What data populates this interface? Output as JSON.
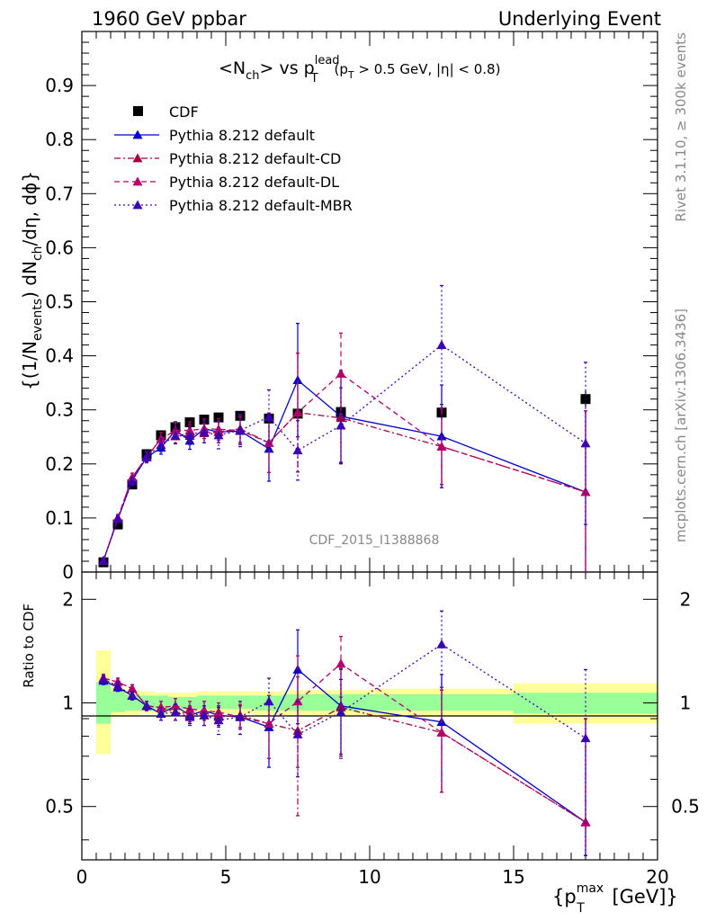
{
  "header": {
    "left": "1960 GeV ppbar",
    "right": "Underlying Event"
  },
  "side_text": {
    "rivet": "Rivet 3.1.10, ≥ 300k events",
    "mcplots": "mcplots.cern.ch [arXiv:1306.3436]"
  },
  "plot_title": {
    "main": "<N",
    "ch": "ch",
    "vs": "> vs p",
    "lead": "lead",
    "T": "T",
    "cuts_a": "(p",
    "cuts_T": "T",
    "cuts_b": " > 0.5 GeV, |η| < 0.8)"
  },
  "watermark": "CDF_2015_I1388868",
  "y_label_main": {
    "a": "{(1/N",
    "events": "events",
    "b": ") dN",
    "ch": "ch",
    "c": "/dη, dϕ}"
  },
  "y_label_ratio": "Ratio to CDF",
  "x_label": {
    "a": "{p",
    "max": "max",
    "T": "T",
    "b": " [GeV]}"
  },
  "legend": [
    {
      "label": "CDF",
      "style": "data"
    },
    {
      "label": "Pythia 8.212 default",
      "style": "solid"
    },
    {
      "label": "Pythia 8.212 default-CD",
      "style": "dashdot"
    },
    {
      "label": "Pythia 8.212 default-DL",
      "style": "dashed"
    },
    {
      "label": "Pythia 8.212 default-MBR",
      "style": "dotted"
    }
  ],
  "colors": {
    "data": "#000000",
    "default": "#0000cc",
    "default_cd": "#a4003f",
    "default_dl": "#b3006b",
    "default_mbr": "#3b00b3",
    "band_inner": "#99ff99",
    "band_outer": "#ffff99"
  },
  "chart_data": [
    {
      "type": "scatter",
      "panel": "main",
      "xlim": [
        0,
        20
      ],
      "ylim": [
        0,
        1.0
      ],
      "x_ticks": [
        "0",
        "5",
        "10",
        "15",
        "20"
      ],
      "y_ticks": [
        "0",
        "0.1",
        "0.2",
        "0.3",
        "0.4",
        "0.5",
        "0.6",
        "0.7",
        "0.8",
        "0.9"
      ],
      "grid": false,
      "legend_position": "top-left",
      "x": [
        0.75,
        1.25,
        1.75,
        2.25,
        2.75,
        3.25,
        3.75,
        4.25,
        4.75,
        5.5,
        6.5,
        7.5,
        9.0,
        12.5,
        17.5
      ],
      "series": [
        {
          "name": "CDF",
          "key": "data",
          "values": [
            0.018,
            0.088,
            0.162,
            0.218,
            0.253,
            0.268,
            0.277,
            0.282,
            0.286,
            0.289,
            0.284,
            0.293,
            0.296,
            0.295,
            0.32
          ],
          "errors": [
            0.002,
            0.004,
            0.005,
            0.006,
            0.006,
            0.006,
            0.006,
            0.006,
            0.006,
            0.007,
            0.008,
            0.009,
            0.01,
            0.012,
            0.015
          ]
        },
        {
          "name": "Pythia 8.212 default",
          "key": "default",
          "values": [
            0.021,
            0.098,
            0.17,
            0.212,
            0.23,
            0.262,
            0.243,
            0.265,
            0.259,
            0.261,
            0.228,
            0.355,
            0.288,
            0.251,
            0.148
          ],
          "errors": [
            0.002,
            0.006,
            0.008,
            0.01,
            0.012,
            0.016,
            0.016,
            0.018,
            0.02,
            0.025,
            0.06,
            0.105,
            0.085,
            0.095,
            0.15
          ]
        },
        {
          "name": "Pythia 8.212 default-CD",
          "key": "default_cd",
          "values": [
            0.021,
            0.1,
            0.175,
            0.213,
            0.246,
            0.251,
            0.257,
            0.257,
            0.259,
            0.265,
            0.239,
            0.295,
            0.285,
            0.232,
            0.148
          ],
          "errors": [
            0.002,
            0.006,
            0.008,
            0.01,
            0.012,
            0.014,
            0.016,
            0.018,
            0.02,
            0.025,
            0.055,
            0.11,
            0.085,
            0.07,
            0.15
          ]
        },
        {
          "name": "Pythia 8.212 default-DL",
          "key": "default_dl",
          "values": [
            0.021,
            0.1,
            0.175,
            0.213,
            0.246,
            0.262,
            0.262,
            0.265,
            0.264,
            0.262,
            0.239,
            0.295,
            0.367,
            0.232,
            0.148
          ],
          "errors": [
            0.002,
            0.006,
            0.008,
            0.01,
            0.012,
            0.014,
            0.016,
            0.018,
            0.02,
            0.025,
            0.055,
            0.11,
            0.075,
            0.07,
            0.15
          ]
        },
        {
          "name": "Pythia 8.212 default-MBR",
          "key": "default_mbr",
          "values": [
            0.021,
            0.098,
            0.168,
            0.214,
            0.235,
            0.252,
            0.252,
            0.259,
            0.253,
            0.262,
            0.287,
            0.225,
            0.271,
            0.42,
            0.238
          ],
          "errors": [
            0.002,
            0.006,
            0.008,
            0.01,
            0.012,
            0.014,
            0.016,
            0.02,
            0.025,
            0.03,
            0.05,
            0.055,
            0.07,
            0.11,
            0.15
          ]
        }
      ]
    },
    {
      "type": "scatter",
      "panel": "ratio",
      "xlim": [
        0,
        20
      ],
      "ylim": [
        0.35,
        2.4
      ],
      "y_scale": "log",
      "x_ticks": [
        "0",
        "5",
        "10",
        "15",
        "20"
      ],
      "y_ticks": [
        "0.5",
        "1",
        "2"
      ],
      "xlabel": "{p_T^max [GeV]}",
      "ylabel": "Ratio to CDF",
      "reference_line": 1,
      "bands": [
        {
          "x0": 0.5,
          "x1": 1.0,
          "inner": [
            0.87,
            1.15
          ],
          "outer": [
            0.71,
            1.42
          ]
        },
        {
          "x0": 1.0,
          "x1": 1.5,
          "inner": [
            0.94,
            1.08
          ],
          "outer": [
            0.91,
            1.11
          ]
        },
        {
          "x0": 1.5,
          "x1": 2.0,
          "inner": [
            0.95,
            1.06
          ],
          "outer": [
            0.92,
            1.09
          ]
        },
        {
          "x0": 2.0,
          "x1": 2.5,
          "inner": [
            0.95,
            1.05
          ],
          "outer": [
            0.93,
            1.08
          ]
        },
        {
          "x0": 2.5,
          "x1": 3.0,
          "inner": [
            0.96,
            1.05
          ],
          "outer": [
            0.93,
            1.07
          ]
        },
        {
          "x0": 3.0,
          "x1": 3.5,
          "inner": [
            0.96,
            1.04
          ],
          "outer": [
            0.93,
            1.07
          ]
        },
        {
          "x0": 3.5,
          "x1": 4.0,
          "inner": [
            0.96,
            1.04
          ],
          "outer": [
            0.93,
            1.07
          ]
        },
        {
          "x0": 4.0,
          "x1": 4.5,
          "inner": [
            0.96,
            1.05
          ],
          "outer": [
            0.93,
            1.08
          ]
        },
        {
          "x0": 4.5,
          "x1": 5.0,
          "inner": [
            0.96,
            1.05
          ],
          "outer": [
            0.93,
            1.08
          ]
        },
        {
          "x0": 5.0,
          "x1": 6.0,
          "inner": [
            0.96,
            1.05
          ],
          "outer": [
            0.93,
            1.08
          ]
        },
        {
          "x0": 6.0,
          "x1": 7.0,
          "inner": [
            0.95,
            1.05
          ],
          "outer": [
            0.92,
            1.08
          ]
        },
        {
          "x0": 7.0,
          "x1": 8.0,
          "inner": [
            0.95,
            1.06
          ],
          "outer": [
            0.92,
            1.09
          ]
        },
        {
          "x0": 8.0,
          "x1": 10.0,
          "inner": [
            0.95,
            1.06
          ],
          "outer": [
            0.92,
            1.09
          ]
        },
        {
          "x0": 10.0,
          "x1": 15.0,
          "inner": [
            0.95,
            1.06
          ],
          "outer": [
            0.91,
            1.1
          ]
        },
        {
          "x0": 15.0,
          "x1": 20.0,
          "inner": [
            0.93,
            1.07
          ],
          "outer": [
            0.87,
            1.14
          ]
        }
      ],
      "x": [
        0.75,
        1.25,
        1.75,
        2.25,
        2.75,
        3.25,
        3.75,
        4.25,
        4.75,
        5.5,
        6.5,
        7.5,
        9.0,
        12.5,
        17.5
      ],
      "series": [
        {
          "name": "Pythia 8.212 default",
          "key": "default",
          "values": [
            1.16,
            1.11,
            1.05,
            0.98,
            0.93,
            0.98,
            0.92,
            0.95,
            0.92,
            0.91,
            0.85,
            1.25,
            0.98,
            0.88,
            0.45
          ],
          "errors": [
            0.03,
            0.03,
            0.03,
            0.03,
            0.04,
            0.05,
            0.05,
            0.06,
            0.06,
            0.07,
            0.2,
            0.38,
            0.28,
            0.33,
            0.45
          ]
        },
        {
          "name": "Pythia 8.212 default-CD",
          "key": "default_cd",
          "values": [
            1.18,
            1.15,
            1.1,
            0.98,
            0.97,
            0.94,
            0.93,
            0.92,
            0.91,
            0.92,
            0.87,
            0.83,
            0.97,
            0.82,
            0.45
          ],
          "errors": [
            0.03,
            0.03,
            0.03,
            0.03,
            0.04,
            0.05,
            0.05,
            0.06,
            0.06,
            0.07,
            0.18,
            0.36,
            0.28,
            0.27,
            0.45
          ]
        },
        {
          "name": "Pythia 8.212 default-DL",
          "key": "default_dl",
          "values": [
            1.18,
            1.15,
            1.1,
            0.98,
            0.97,
            0.98,
            0.96,
            0.95,
            0.94,
            0.91,
            0.87,
            1.01,
            1.3,
            0.82,
            0.45
          ],
          "errors": [
            0.03,
            0.03,
            0.03,
            0.03,
            0.04,
            0.05,
            0.05,
            0.06,
            0.06,
            0.07,
            0.18,
            0.36,
            0.26,
            0.27,
            0.45
          ]
        },
        {
          "name": "Pythia 8.212 default-MBR",
          "key": "default_mbr",
          "values": [
            1.17,
            1.12,
            1.05,
            0.98,
            0.93,
            0.94,
            0.91,
            0.92,
            0.89,
            0.91,
            1.01,
            0.81,
            0.94,
            1.48,
            0.79
          ],
          "errors": [
            0.03,
            0.03,
            0.03,
            0.03,
            0.04,
            0.05,
            0.05,
            0.06,
            0.08,
            0.1,
            0.17,
            0.2,
            0.23,
            0.37,
            0.46
          ]
        }
      ]
    }
  ]
}
